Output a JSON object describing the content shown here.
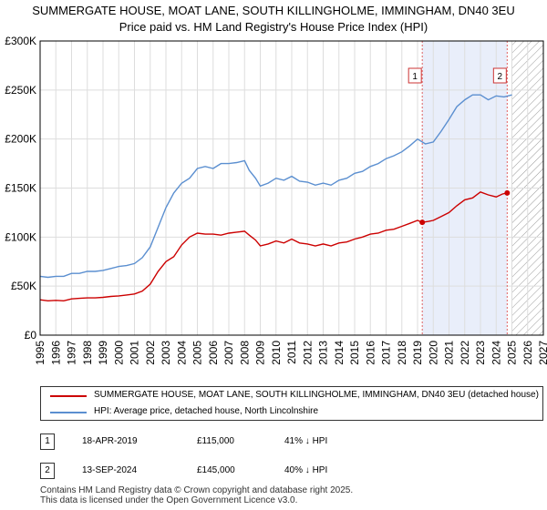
{
  "chart_data": {
    "type": "line",
    "title": "SUMMERGATE HOUSE, MOAT LANE, SOUTH KILLINGHOLME, IMMINGHAM, DN40 3EU",
    "subtitle": "Price paid vs. HM Land Registry's House Price Index (HPI)",
    "xlabel": "",
    "ylabel": "",
    "xlim": [
      1995,
      2027
    ],
    "ylim": [
      0,
      300000
    ],
    "yticks": [
      0,
      50000,
      100000,
      150000,
      200000,
      250000,
      300000
    ],
    "ytick_labels": [
      "£0",
      "£50K",
      "£100K",
      "£150K",
      "£200K",
      "£250K",
      "£300K"
    ],
    "xticks": [
      1995,
      1996,
      1997,
      1998,
      1999,
      2000,
      2001,
      2002,
      2003,
      2004,
      2005,
      2006,
      2007,
      2008,
      2009,
      2010,
      2011,
      2012,
      2013,
      2014,
      2015,
      2016,
      2017,
      2018,
      2019,
      2020,
      2021,
      2022,
      2023,
      2024,
      2025,
      2026,
      2027
    ],
    "xtick_labels": [
      "1995",
      "1996",
      "1997",
      "1998",
      "1999",
      "2000",
      "2001",
      "2002",
      "2003",
      "2004",
      "2005",
      "2006",
      "2007",
      "2008",
      "2009",
      "2010",
      "2011",
      "2012",
      "2013",
      "2014",
      "2015",
      "2016",
      "2017",
      "2018",
      "2019",
      "2020",
      "2021",
      "2022",
      "2023",
      "2024",
      "2025",
      "2026",
      "2027"
    ],
    "grid": true,
    "sale_band": [
      2019.3,
      2024.7
    ],
    "forecast_start": 2025.0,
    "series": [
      {
        "name": "SUMMERGATE HOUSE, MOAT LANE, SOUTH KILLINGHOLME, IMMINGHAM, DN40 3EU (detached house)",
        "color": "#cc0000",
        "x": [
          1995,
          1995.5,
          1996,
          1996.5,
          1997,
          1997.5,
          1998,
          1998.5,
          1999,
          1999.5,
          2000,
          2000.5,
          2001,
          2001.5,
          2002,
          2002.5,
          2003,
          2003.5,
          2004,
          2004.5,
          2005,
          2005.5,
          2006,
          2006.5,
          2007,
          2007.5,
          2008,
          2008.3,
          2008.7,
          2009,
          2009.5,
          2010,
          2010.5,
          2011,
          2011.5,
          2012,
          2012.5,
          2013,
          2013.5,
          2014,
          2014.5,
          2015,
          2015.5,
          2016,
          2016.5,
          2017,
          2017.5,
          2018,
          2018.5,
          2019,
          2019.3,
          2019.7,
          2020,
          2020.5,
          2021,
          2021.5,
          2022,
          2022.5,
          2023,
          2023.5,
          2024,
          2024.4,
          2024.7
        ],
        "values": [
          36000,
          35000,
          35500,
          35000,
          37000,
          37500,
          38000,
          38000,
          38500,
          39500,
          40000,
          41000,
          42000,
          45000,
          52000,
          65000,
          75000,
          80000,
          92000,
          100000,
          104000,
          103000,
          103000,
          102000,
          104000,
          105000,
          106000,
          102000,
          97000,
          91000,
          93000,
          96000,
          94000,
          98000,
          94000,
          93000,
          91000,
          93000,
          91000,
          94000,
          95000,
          98000,
          100000,
          103000,
          104000,
          107000,
          108000,
          111000,
          114000,
          117000,
          115000,
          116000,
          117000,
          121000,
          125000,
          132000,
          138000,
          140000,
          146000,
          143000,
          141000,
          144000,
          145000
        ]
      },
      {
        "name": "HPI: Average price, detached house, North Lincolnshire",
        "color": "#5b8fd0",
        "x": [
          1995,
          1995.5,
          1996,
          1996.5,
          1997,
          1997.5,
          1998,
          1998.5,
          1999,
          1999.5,
          2000,
          2000.5,
          2001,
          2001.5,
          2002,
          2002.5,
          2003,
          2003.5,
          2004,
          2004.5,
          2005,
          2005.5,
          2006,
          2006.5,
          2007,
          2007.5,
          2008,
          2008.3,
          2008.7,
          2009,
          2009.5,
          2010,
          2010.5,
          2011,
          2011.5,
          2012,
          2012.5,
          2013,
          2013.5,
          2014,
          2014.5,
          2015,
          2015.5,
          2016,
          2016.5,
          2017,
          2017.5,
          2018,
          2018.5,
          2019,
          2019.5,
          2020,
          2020.5,
          2021,
          2021.5,
          2022,
          2022.5,
          2023,
          2023.5,
          2024,
          2024.5,
          2025
        ],
        "values": [
          60000,
          59000,
          60000,
          60000,
          63000,
          63000,
          65000,
          65000,
          66000,
          68000,
          70000,
          71000,
          73000,
          79000,
          90000,
          110000,
          130000,
          145000,
          155000,
          160000,
          170000,
          172000,
          170000,
          175000,
          175000,
          176000,
          178000,
          168000,
          160000,
          152000,
          155000,
          160000,
          158000,
          162000,
          157000,
          156000,
          153000,
          155000,
          153000,
          158000,
          160000,
          165000,
          167000,
          172000,
          175000,
          180000,
          183000,
          187000,
          193000,
          200000,
          195000,
          197000,
          208000,
          220000,
          233000,
          240000,
          245000,
          245000,
          240000,
          244000,
          243000,
          245000
        ]
      }
    ],
    "annotations": [
      {
        "label": "1",
        "x": 2019.3,
        "value": 115000
      },
      {
        "label": "2",
        "x": 2024.7,
        "value": 145000
      }
    ]
  },
  "legend": {
    "property_label": "SUMMERGATE HOUSE, MOAT LANE, SOUTH KILLINGHOLME, IMMINGHAM, DN40 3EU (detached house)",
    "hpi_label": "HPI: Average price, detached house, North Lincolnshire"
  },
  "transactions": [
    {
      "badge": "1",
      "date": "18-APR-2019",
      "price": "£115,000",
      "hpi_diff": "41% ↓ HPI"
    },
    {
      "badge": "2",
      "date": "13-SEP-2024",
      "price": "£145,000",
      "hpi_diff": "40% ↓ HPI"
    }
  ],
  "footer": {
    "line1": "Contains HM Land Registry data © Crown copyright and database right 2025.",
    "line2": "This data is licensed under the Open Government Licence v3.0."
  }
}
